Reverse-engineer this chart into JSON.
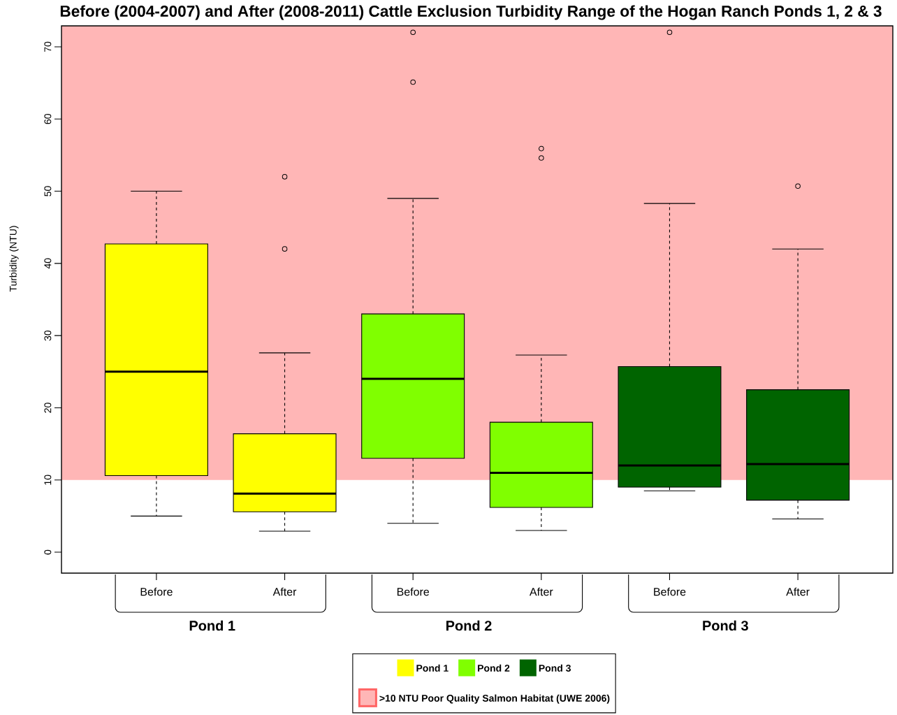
{
  "chart_data": {
    "type": "box",
    "title": "Before (2004-2007) and After (2008-2011) Cattle Exclusion Turbidity Range of the Hogan Ranch Ponds 1, 2 & 3",
    "ylabel": "Turbidity (NTU)",
    "categories": [
      "Before",
      "After",
      "Before",
      "After",
      "Before",
      "After"
    ],
    "series": [
      {
        "name": "Pond 1",
        "color": "#ffff00",
        "boxes": [
          {
            "low": 5.0,
            "q1": 10.6,
            "median": 25.0,
            "q3": 42.7,
            "high": 50.0
          },
          {
            "low": 2.9,
            "q1": 5.6,
            "median": 8.1,
            "q3": 16.4,
            "high": 27.6,
            "outliers": [
              42.0,
              52.0
            ]
          },
          null,
          null,
          null,
          null
        ]
      },
      {
        "name": "Pond 2",
        "color": "#80ff00",
        "boxes": [
          null,
          null,
          {
            "low": 4.0,
            "q1": 13.0,
            "median": 24.0,
            "q3": 33.0,
            "high": 49.0,
            "outliers": [
              65.1,
              72.0
            ]
          },
          {
            "low": 3.0,
            "q1": 6.2,
            "median": 11.0,
            "q3": 18.0,
            "high": 27.3,
            "outliers": [
              54.6,
              55.9
            ]
          },
          null,
          null
        ]
      },
      {
        "name": "Pond 3",
        "color": "#006400",
        "boxes": [
          null,
          null,
          null,
          null,
          {
            "low": 8.5,
            "q1": 9.0,
            "median": 12.0,
            "q3": 25.7,
            "high": 48.3,
            "outliers": [
              72.0
            ]
          },
          {
            "low": 4.6,
            "q1": 7.2,
            "median": 12.2,
            "q3": 22.5,
            "high": 42.0,
            "outliers": [
              50.7
            ]
          }
        ]
      }
    ],
    "ylim": [
      -2.9,
      72.9
    ],
    "yticks": [
      0,
      10,
      20,
      30,
      40,
      50,
      60,
      70
    ],
    "bands": [
      {
        "axis": "y",
        "from": 10,
        "to": 72.9,
        "label": ">10 NTU Poor Quality Salmon Habitat (UWE 2006)",
        "color": "#ffb6b6"
      }
    ],
    "legend": "bottom"
  }
}
